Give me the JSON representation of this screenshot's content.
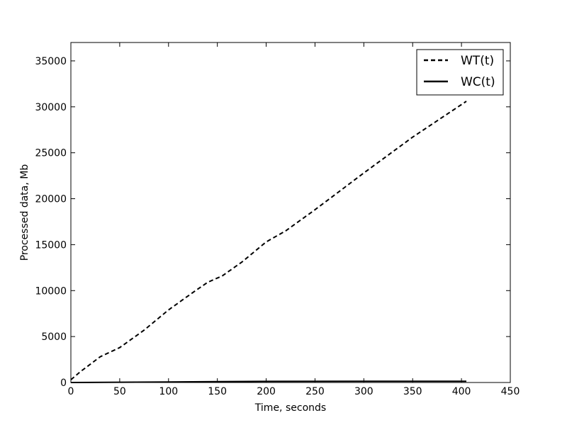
{
  "chart_data": {
    "type": "line",
    "title": "",
    "xlabel": "Time, seconds",
    "ylabel": "Processed data, Mb",
    "xlim": [
      0,
      450
    ],
    "ylim": [
      0,
      37000
    ],
    "xticks": [
      0,
      50,
      100,
      150,
      200,
      250,
      300,
      350,
      400,
      450
    ],
    "yticks": [
      0,
      5000,
      10000,
      15000,
      20000,
      25000,
      30000,
      35000
    ],
    "grid": false,
    "legend_position": "top-right",
    "series": [
      {
        "name": "WT(t)",
        "style": "dashed",
        "color": "#000000",
        "x": [
          0,
          10,
          20,
          30,
          50,
          75,
          100,
          125,
          140,
          155,
          175,
          200,
          220,
          250,
          300,
          350,
          405
        ],
        "y": [
          300,
          1200,
          2000,
          2800,
          3800,
          5700,
          7900,
          9800,
          10900,
          11600,
          13100,
          15300,
          16500,
          18800,
          22800,
          26700,
          30600
        ]
      },
      {
        "name": "WC(t)",
        "style": "solid",
        "color": "#000000",
        "x": [
          0,
          50,
          100,
          150,
          200,
          300,
          405
        ],
        "y": [
          0,
          30,
          60,
          100,
          120,
          130,
          130
        ]
      }
    ]
  }
}
